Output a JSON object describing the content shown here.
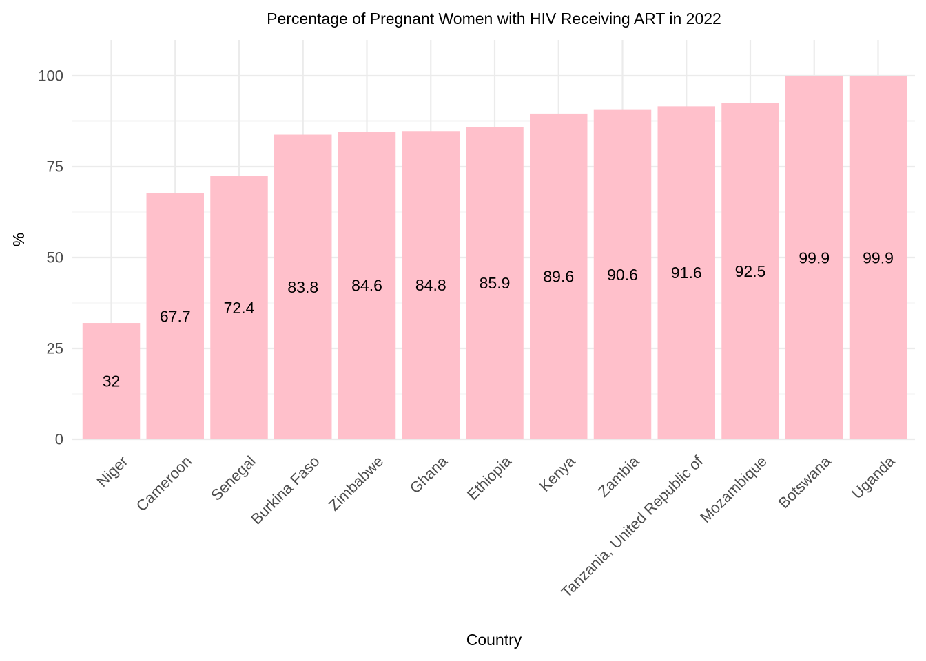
{
  "chart_data": {
    "type": "bar",
    "title": "Percentage of Pregnant Women with HIV Receiving ART in 2022",
    "xlabel": "Country",
    "ylabel": "%",
    "categories": [
      "Niger",
      "Cameroon",
      "Senegal",
      "Burkina Faso",
      "Zimbabwe",
      "Ghana",
      "Ethiopia",
      "Kenya",
      "Zambia",
      "Tanzania, United Republic of",
      "Mozambique",
      "Botswana",
      "Uganda"
    ],
    "values": [
      32,
      67.7,
      72.4,
      83.8,
      84.6,
      84.8,
      85.9,
      89.6,
      90.6,
      91.6,
      92.5,
      99.9,
      99.9
    ],
    "data_labels": [
      "32",
      "67.7",
      "72.4",
      "83.8",
      "84.6",
      "84.8",
      "85.9",
      "89.6",
      "90.6",
      "91.6",
      "92.5",
      "99.9",
      "99.9"
    ],
    "y_ticks": [
      0,
      25,
      50,
      75,
      100
    ],
    "y_tick_labels": [
      "0",
      "25",
      "50",
      "75",
      "100"
    ],
    "ylim": [
      0,
      109.6
    ],
    "grid": true,
    "legend": "none",
    "bar_color": "#ffc0cb",
    "background": "#ffffff"
  }
}
